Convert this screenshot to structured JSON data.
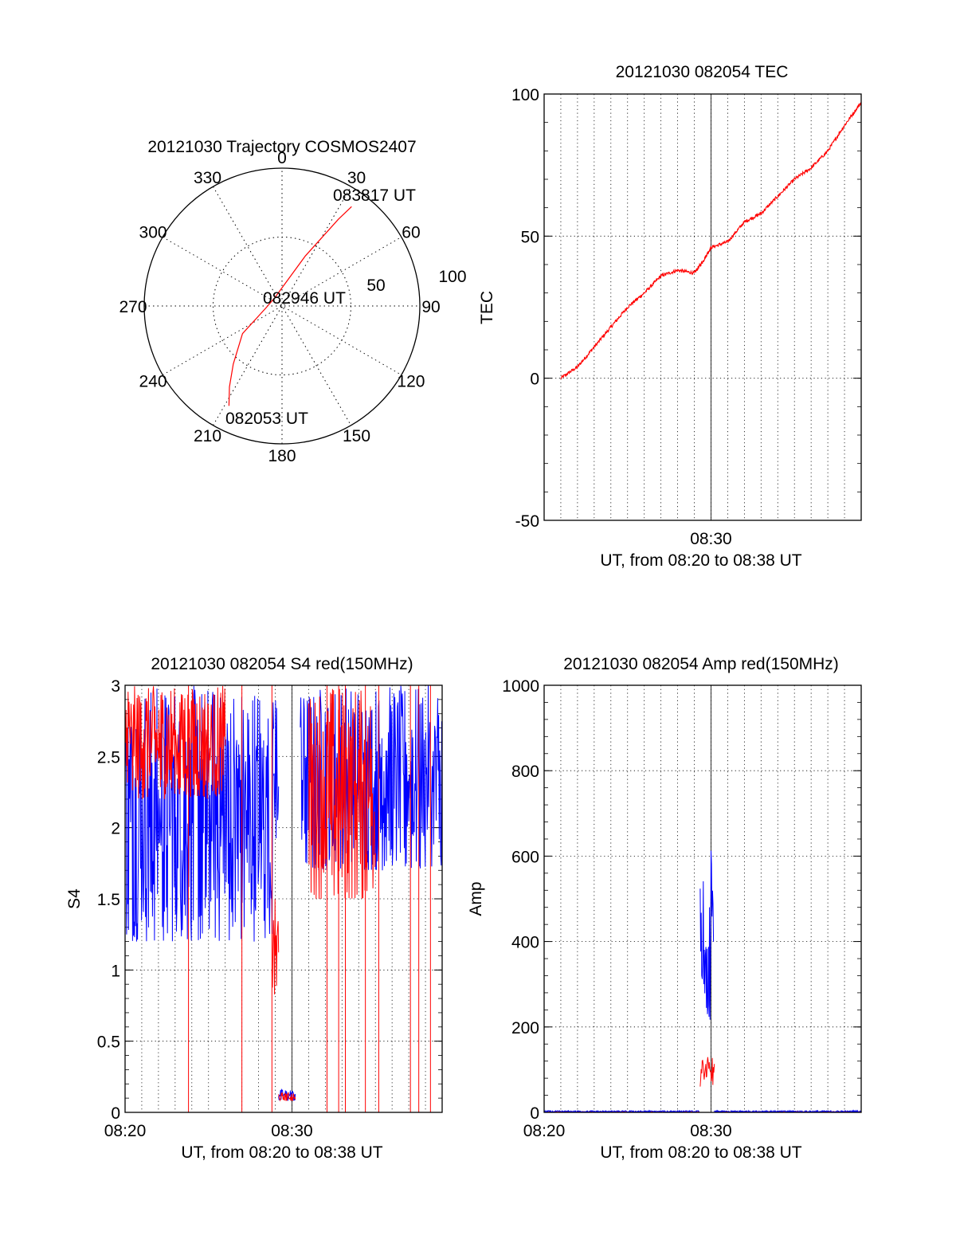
{
  "chart_data": [
    {
      "id": "trajectory",
      "type": "polar",
      "title": "20121030 Trajectory COSMOS2407",
      "azimuth_labels": [
        {
          "angle": 0,
          "text": "0"
        },
        {
          "angle": 30,
          "text": "30"
        },
        {
          "angle": 60,
          "text": "60"
        },
        {
          "angle": 90,
          "text": "90"
        },
        {
          "angle": 120,
          "text": "120"
        },
        {
          "angle": 150,
          "text": "150"
        },
        {
          "angle": 180,
          "text": "180"
        },
        {
          "angle": 210,
          "text": "210"
        },
        {
          "angle": 240,
          "text": "240"
        },
        {
          "angle": 270,
          "text": "270"
        },
        {
          "angle": 300,
          "text": "300"
        },
        {
          "angle": 330,
          "text": "330"
        }
      ],
      "ring_labels": [
        "50",
        "100"
      ],
      "annotations": [
        {
          "text": "083817 UT"
        },
        {
          "text": "082946 UT"
        },
        {
          "text": "082053 UT"
        }
      ],
      "series": [
        {
          "color": "#ff0000",
          "points": [
            [
              208,
              82
            ],
            [
              213,
              70
            ],
            [
              220,
              55
            ],
            [
              235,
              35
            ],
            [
              262,
              12
            ],
            [
              320,
              8
            ],
            [
              25,
              40
            ],
            [
              33,
              75
            ],
            [
              35,
              88
            ]
          ]
        }
      ]
    },
    {
      "id": "tec",
      "type": "line",
      "title": "20121030 082054 TEC",
      "ylabel": "TEC",
      "xlabel": "UT, from 08:20 to 08:38 UT",
      "xlim": [
        0,
        19
      ],
      "ylim": [
        -50,
        100
      ],
      "yticks": [
        "-50",
        "0",
        "50",
        "100"
      ],
      "xticks": [
        {
          "x": 10,
          "label": "08:30"
        }
      ],
      "grid": true,
      "series": [
        {
          "color": "#ff0000",
          "x": [
            1,
            2,
            3,
            4,
            5,
            6,
            7,
            8,
            9,
            9.5,
            10,
            11,
            12,
            13,
            14,
            15,
            16,
            17,
            18,
            19
          ],
          "y": [
            0,
            4,
            11,
            18,
            25,
            30,
            36,
            38,
            37,
            41,
            46,
            48,
            55,
            58,
            64,
            70,
            74,
            80,
            89,
            97
          ]
        }
      ]
    },
    {
      "id": "s4",
      "type": "line",
      "title": "20121030 082054 S4 red(150MHz)",
      "ylabel": "S4",
      "xlabel": "UT, from 08:20 to 08:38 UT",
      "xlim": [
        0,
        19
      ],
      "ylim": [
        0,
        3
      ],
      "yticks": [
        "0",
        "0.5",
        "1",
        "1.5",
        "2",
        "2.5",
        "3"
      ],
      "xticks": [
        {
          "x": 0,
          "label": "08:20"
        },
        {
          "x": 10,
          "label": "08:30"
        }
      ],
      "grid": true,
      "series": [
        {
          "color": "#0000ff",
          "name": "",
          "style": "noise",
          "segments": [
            {
              "x0": 0,
              "x1": 8.9,
              "ymin": 1.2,
              "ymax": 3
            },
            {
              "x0": 8.9,
              "x1": 9.2,
              "ymin": 1.8,
              "ymax": 3
            },
            {
              "x0": 9.2,
              "x1": 10.2,
              "ymin": 0.08,
              "ymax": 0.16
            },
            {
              "x0": 10.5,
              "x1": 19,
              "ymin": 1.7,
              "ymax": 3
            }
          ]
        },
        {
          "color": "#ff0000",
          "name": "",
          "style": "noise",
          "segments": [
            {
              "x0": 0,
              "x1": 6,
              "ymin": 2.2,
              "ymax": 3
            },
            {
              "x0": 8.8,
              "x1": 9.2,
              "ymin": 0.8,
              "ymax": 1.5
            },
            {
              "x0": 9.2,
              "x1": 10.2,
              "ymin": 0.08,
              "ymax": 0.14
            },
            {
              "x0": 11,
              "x1": 15,
              "ymin": 1.5,
              "ymax": 3
            }
          ],
          "drops": [
            3.8,
            7.0,
            8.8,
            12.1,
            12.8,
            13.2,
            14.4,
            15.2,
            17.1,
            17.6,
            18.3
          ]
        }
      ]
    },
    {
      "id": "amp",
      "type": "line",
      "title": "20121030 082054 Amp red(150MHz)",
      "ylabel": "Amp",
      "xlabel": "UT, from 08:20 to 08:38 UT",
      "xlim": [
        0,
        19
      ],
      "ylim": [
        0,
        1000
      ],
      "yticks": [
        "0",
        "200",
        "400",
        "600",
        "800",
        "1000"
      ],
      "xticks": [
        {
          "x": 0,
          "label": "08:20"
        },
        {
          "x": 10,
          "label": "08:30"
        }
      ],
      "grid": true,
      "series": [
        {
          "color": "#ff0000",
          "style": "noise",
          "segments": [
            {
              "x0": 0,
              "x1": 9.3,
              "ymin": 0,
              "ymax": 2
            },
            {
              "x0": 9.35,
              "x1": 10.2,
              "ymin": 60,
              "ymax": 130
            },
            {
              "x0": 10.2,
              "x1": 19,
              "ymin": 0,
              "ymax": 2
            }
          ]
        },
        {
          "color": "#0000ff",
          "style": "noise",
          "segments": [
            {
              "x0": 0,
              "x1": 9.3,
              "ymin": 0,
              "ymax": 4
            },
            {
              "x0": 9.35,
              "x1": 9.6,
              "ymin": 300,
              "ymax": 545
            },
            {
              "x0": 9.6,
              "x1": 9.85,
              "ymin": 170,
              "ymax": 400
            },
            {
              "x0": 9.85,
              "x1": 10.15,
              "ymin": 200,
              "ymax": 620
            },
            {
              "x0": 10.2,
              "x1": 19,
              "ymin": 0,
              "ymax": 4
            }
          ]
        }
      ]
    }
  ]
}
